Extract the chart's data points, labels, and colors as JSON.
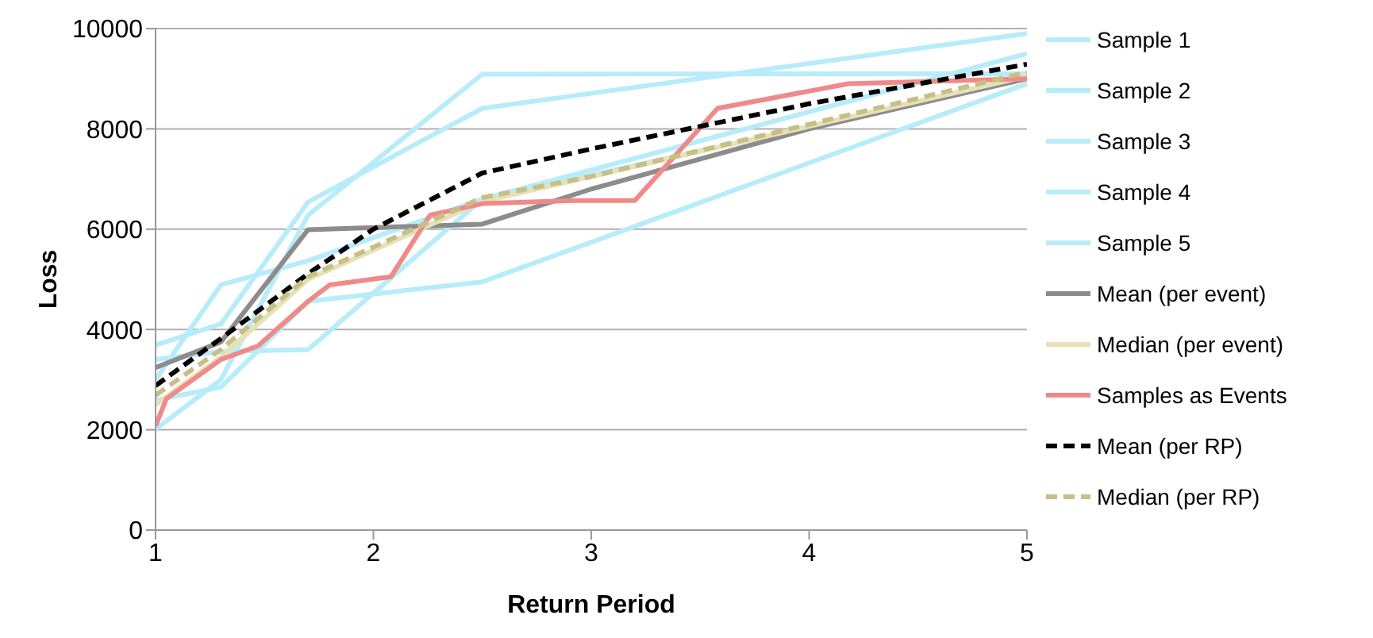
{
  "chart_data": {
    "type": "line",
    "xlabel": "Return Period",
    "ylabel": "Loss",
    "xlim": [
      1,
      5
    ],
    "xticks": [
      1,
      2,
      3,
      4,
      5
    ],
    "ylim": [
      0,
      10000
    ],
    "yticks": [
      0,
      2000,
      4000,
      6000,
      8000,
      10000
    ],
    "grid": "y",
    "legend": "right",
    "marker": "none",
    "line_style": "solid",
    "series": [
      {
        "name": "Sample 1",
        "color": "#b7ecfa",
        "x": [
          1,
          1.3,
          1.7,
          2.5,
          5
        ],
        "values": [
          3690,
          4110,
          6540,
          8410,
          9900
        ]
      },
      {
        "name": "Sample 2",
        "color": "#b7ecfa",
        "x": [
          1,
          1.3,
          1.7,
          2.5,
          4.6,
          5
        ],
        "values": [
          2010,
          3000,
          6280,
          9090,
          9100,
          9100
        ]
      },
      {
        "name": "Sample 3",
        "color": "#b7ecfa",
        "x": [
          1,
          1.3,
          1.7,
          2.5,
          5
        ],
        "values": [
          3400,
          3560,
          3600,
          6600,
          9500
        ]
      },
      {
        "name": "Sample 4",
        "color": "#b7ecfa",
        "x": [
          1,
          1.3,
          1.7,
          2.5,
          5
        ],
        "values": [
          2590,
          2850,
          4560,
          4950,
          8900
        ]
      },
      {
        "name": "Sample 5",
        "color": "#b7ecfa",
        "x": [
          1,
          1.3,
          1.7,
          2.5,
          5
        ],
        "values": [
          3000,
          4890,
          5370,
          6600,
          9000
        ]
      },
      {
        "name": "Mean (per event)",
        "color": "#8c8c8c",
        "x": [
          1,
          1.3,
          1.7,
          2.5,
          3,
          4,
          5
        ],
        "values": [
          3240,
          3750,
          5990,
          6100,
          6800,
          8000,
          9000
        ]
      },
      {
        "name": "Median (per event)",
        "color": "#e6e2b8",
        "x": [
          1,
          1.3,
          1.7,
          2.5,
          5
        ],
        "values": [
          2500,
          3450,
          5000,
          6550,
          9050
        ]
      },
      {
        "name": "Samples as Events",
        "color": "#f08a8a",
        "x": [
          1,
          1.05,
          1.3,
          1.47,
          1.7,
          1.8,
          2.08,
          2.26,
          2.5,
          2.92,
          3.2,
          3.58,
          4.18,
          5
        ],
        "values": [
          2080,
          2620,
          3400,
          3670,
          4560,
          4890,
          5050,
          6280,
          6510,
          6570,
          6570,
          8410,
          8900,
          9000
        ]
      },
      {
        "name": "Mean (per RP)",
        "color": "#000000",
        "line_style": "dashed",
        "x": [
          1,
          1.3,
          1.7,
          2,
          2.5,
          3,
          4,
          5
        ],
        "values": [
          2880,
          3820,
          5110,
          6000,
          7120,
          7600,
          8500,
          9290
        ]
      },
      {
        "name": "Median (per RP)",
        "color": "#c8bf86",
        "line_style": "dashed",
        "x": [
          1,
          1.3,
          1.7,
          2.5,
          3,
          5
        ],
        "values": [
          2690,
          3600,
          5050,
          6630,
          7050,
          9130
        ]
      }
    ]
  }
}
